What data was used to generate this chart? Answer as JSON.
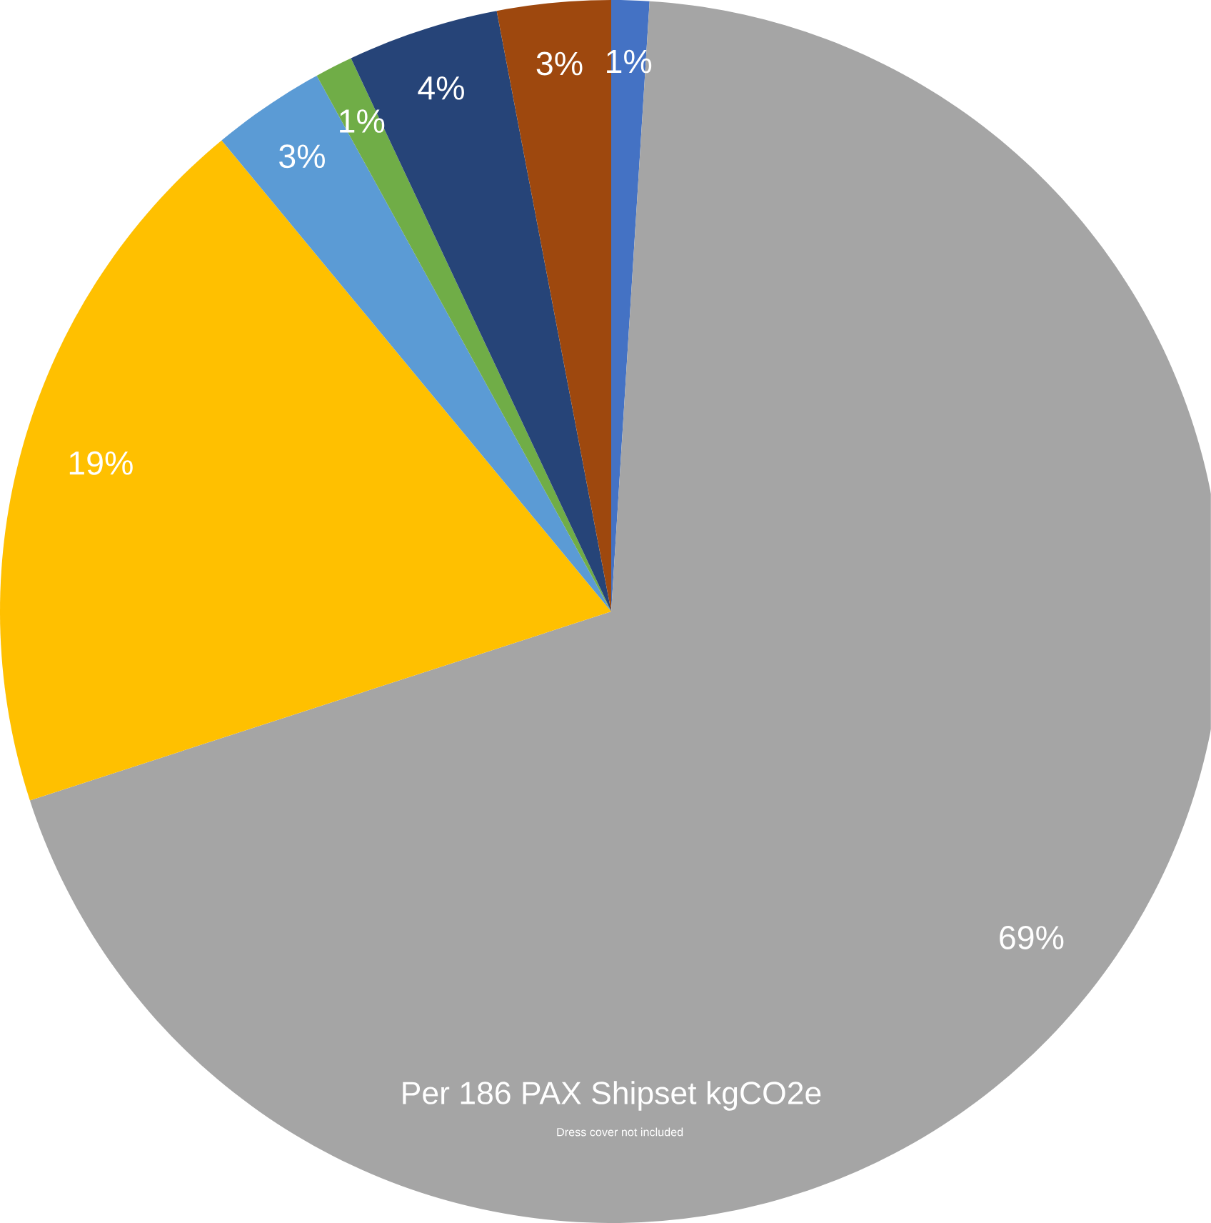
{
  "chart_data": {
    "type": "pie",
    "title": "Per 186 PAX Shipset kgCO2e",
    "annotations": [
      "Dress cover not included"
    ],
    "categories": [
      null,
      null,
      null,
      null,
      null,
      null,
      null
    ],
    "values": [
      1,
      69,
      19,
      3,
      1,
      4,
      3
    ],
    "value_labels": [
      "1%",
      "69%",
      "19%",
      "3%",
      "1%",
      "4%",
      "3%"
    ],
    "colors": [
      "#4472c4",
      "#a5a5a5",
      "#ffc000",
      "#5b9bd5",
      "#70ad47",
      "#264478",
      "#9e480e"
    ]
  }
}
